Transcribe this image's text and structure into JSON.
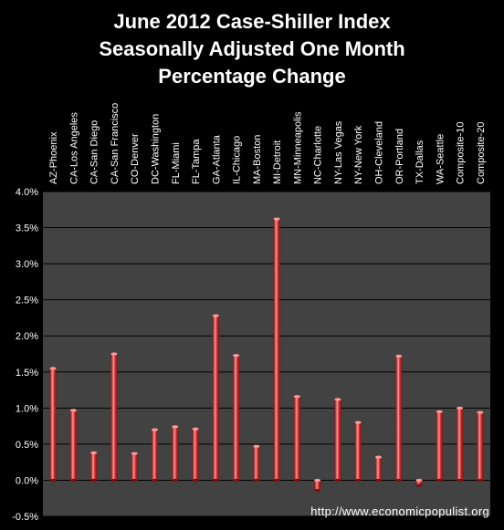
{
  "chart_data": {
    "type": "bar",
    "title_lines": [
      "June 2012 Case-Shiller Index",
      "Seasonally Adjusted One Month",
      "Percentage Change"
    ],
    "categories": [
      "AZ-Phoenix",
      "CA-Los Angeles",
      "CA-San Diego",
      "CA-San Francisco",
      "CO-Denver",
      "DC-Washington",
      "FL-Miami",
      "FL-Tampa",
      "GA-Atlanta",
      "IL-Chicago",
      "MA-Boston",
      "MI-Detroit",
      "MN-Minneapolis",
      "NC-Charlotte",
      "NY-Las Vegas",
      "NY-New York",
      "OH-Cleveland",
      "OR-Portland",
      "TX-Dallas",
      "WA-Seattle",
      "Composite-10",
      "Composite-20"
    ],
    "values": [
      1.55,
      0.97,
      0.38,
      1.75,
      0.37,
      0.7,
      0.74,
      0.71,
      2.28,
      1.73,
      0.47,
      3.62,
      1.16,
      -0.14,
      1.12,
      0.8,
      0.32,
      1.72,
      -0.07,
      0.95,
      1.0,
      0.94
    ],
    "yticks": [
      "4.0%",
      "3.5%",
      "3.0%",
      "2.5%",
      "2.0%",
      "1.5%",
      "1.0%",
      "0.5%",
      "0.0%",
      "-0.5%"
    ],
    "ylim": [
      -0.5,
      4.0
    ],
    "grid": true,
    "xlabel": "",
    "ylabel": "",
    "colors": {
      "background": "#000000",
      "plot_area": "#424242",
      "bar_dark": "#7a1010",
      "bar_mid": "#e23a3a",
      "bar_light": "#ff9a9a",
      "text": "#ffffff",
      "gridline": "#000000"
    }
  },
  "watermark": "http://www.economicpopulist.org"
}
